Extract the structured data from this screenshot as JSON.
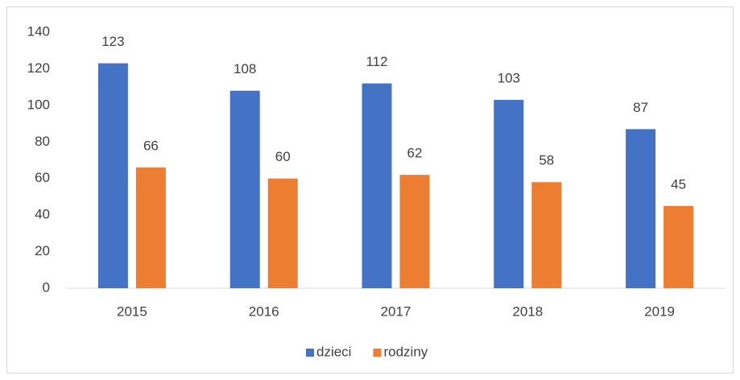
{
  "chart_data": {
    "type": "bar",
    "categories": [
      "2015",
      "2016",
      "2017",
      "2018",
      "2019"
    ],
    "series": [
      {
        "name": "dzieci",
        "color": "#4472c4",
        "values": [
          123,
          108,
          112,
          103,
          87
        ]
      },
      {
        "name": "rodziny",
        "color": "#ed7d31",
        "values": [
          66,
          60,
          62,
          58,
          45
        ]
      }
    ],
    "ylim": [
      0,
      140
    ],
    "yticks": [
      0,
      20,
      40,
      60,
      80,
      100,
      120,
      140
    ],
    "grid": false,
    "data_labels": true,
    "legend": "bottom"
  }
}
